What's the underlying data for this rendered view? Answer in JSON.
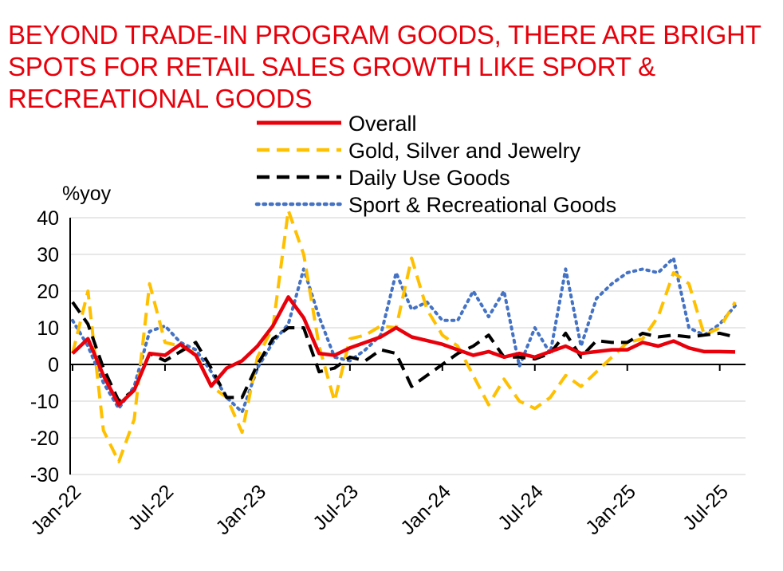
{
  "title": "BEYOND TRADE-IN PROGRAM GOODS, THERE ARE BRIGHT SPOTS FOR RETAIL SALES GROWTH LIKE SPORT & RECREATIONAL GOODS",
  "colors": {
    "title": "#e8000b",
    "overall": "#e8000b",
    "gold": "#ffc000",
    "daily": "#000000",
    "sport": "#4472c4",
    "grid": "#d9d9d9"
  },
  "chart_data": {
    "type": "line",
    "title": "BEYOND TRADE-IN PROGRAM GOODS, THERE ARE BRIGHT SPOTS FOR RETAIL SALES GROWTH LIKE SPORT & RECREATIONAL GOODS",
    "ylabel": "%yoy",
    "xlabel": "",
    "ylim": [
      -30,
      40
    ],
    "yticks": [
      40,
      30,
      20,
      10,
      0,
      -10,
      -20,
      -30
    ],
    "grid": true,
    "legend_position": "top",
    "x": [
      "Jan-22",
      "Feb-22",
      "Mar-22",
      "Apr-22",
      "May-22",
      "Jun-22",
      "Jul-22",
      "Aug-22",
      "Sep-22",
      "Oct-22",
      "Nov-22",
      "Dec-22",
      "Jan-23",
      "Feb-23",
      "Mar-23",
      "Apr-23",
      "May-23",
      "Jun-23",
      "Jul-23",
      "Aug-23",
      "Sep-23",
      "Oct-23",
      "Nov-23",
      "Dec-23",
      "Jan-24",
      "Feb-24",
      "Mar-24",
      "Apr-24",
      "May-24",
      "Jun-24",
      "Jul-24",
      "Aug-24",
      "Sep-24",
      "Oct-24",
      "Nov-24",
      "Dec-24",
      "Jan-25",
      "Feb-25",
      "Mar-25",
      "Apr-25",
      "May-25",
      "Jun-25",
      "Jul-25",
      "Aug-25"
    ],
    "xtick_labels": [
      "Jan-22",
      "Jul-22",
      "Jan-23",
      "Jul-23",
      "Jan-24",
      "Jul-24",
      "Jan-25",
      "Jul-25"
    ],
    "series": [
      {
        "name": "Overall",
        "values": [
          3,
          7,
          -3,
          -11,
          -7,
          3,
          2.5,
          5.5,
          2.5,
          -5.9,
          -1,
          1,
          5,
          10.5,
          18.4,
          12.7,
          3,
          2.5,
          4.5,
          6,
          7.5,
          10,
          7.5,
          6.5,
          5.5,
          4,
          2.5,
          3.5,
          2,
          3,
          2,
          3.5,
          5,
          3,
          3.5,
          4,
          4,
          6,
          5,
          6.4,
          4.5,
          3.5,
          3.5,
          3.4
        ]
      },
      {
        "name": "Gold, Silver and Jewelry",
        "values": [
          3,
          20,
          -18,
          -26.5,
          -15,
          22,
          6,
          5,
          3,
          -6,
          -9,
          -18.5,
          2,
          10,
          42,
          30,
          5,
          -10,
          7,
          8,
          10.5,
          10,
          29,
          15,
          8,
          5,
          -3,
          -11,
          -4,
          -10,
          -12,
          -9,
          -3,
          -6,
          -2,
          2,
          6,
          7,
          13,
          25,
          22,
          8,
          10,
          17
        ]
      },
      {
        "name": "Daily Use Goods",
        "values": [
          17,
          11,
          -1,
          -10,
          -7,
          3,
          1,
          3.5,
          6,
          -1,
          -9,
          -9,
          0,
          7,
          10,
          10,
          -2,
          -1,
          2,
          1,
          4,
          3,
          -6,
          -3,
          0,
          3,
          5,
          8,
          2,
          2,
          1.5,
          3,
          8.5,
          2,
          6.5,
          6,
          6,
          8.5,
          7.5,
          8,
          7.5,
          8,
          8.5,
          7.5
        ]
      },
      {
        "name": "Sport & Recreational Goods",
        "values": [
          12,
          5,
          -5,
          -12,
          -6,
          9,
          10.5,
          6,
          4,
          -2,
          -9,
          -13,
          -1,
          6,
          11,
          26,
          13,
          2,
          1,
          4,
          8,
          25,
          15,
          17,
          12,
          12,
          20,
          13,
          20,
          -0.5,
          10,
          3,
          26,
          5,
          18,
          22,
          25,
          26,
          25,
          29,
          10,
          8,
          11,
          16
        ]
      }
    ]
  }
}
